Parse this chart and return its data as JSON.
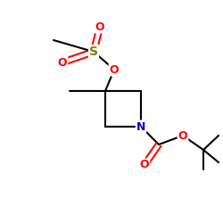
{
  "bg_color": "#ffffff",
  "colors": {
    "bond": "#000000",
    "S": "#808000",
    "O": "#ff0000",
    "N": "#0000cc",
    "C": "#000000"
  },
  "lw": 1.5
}
